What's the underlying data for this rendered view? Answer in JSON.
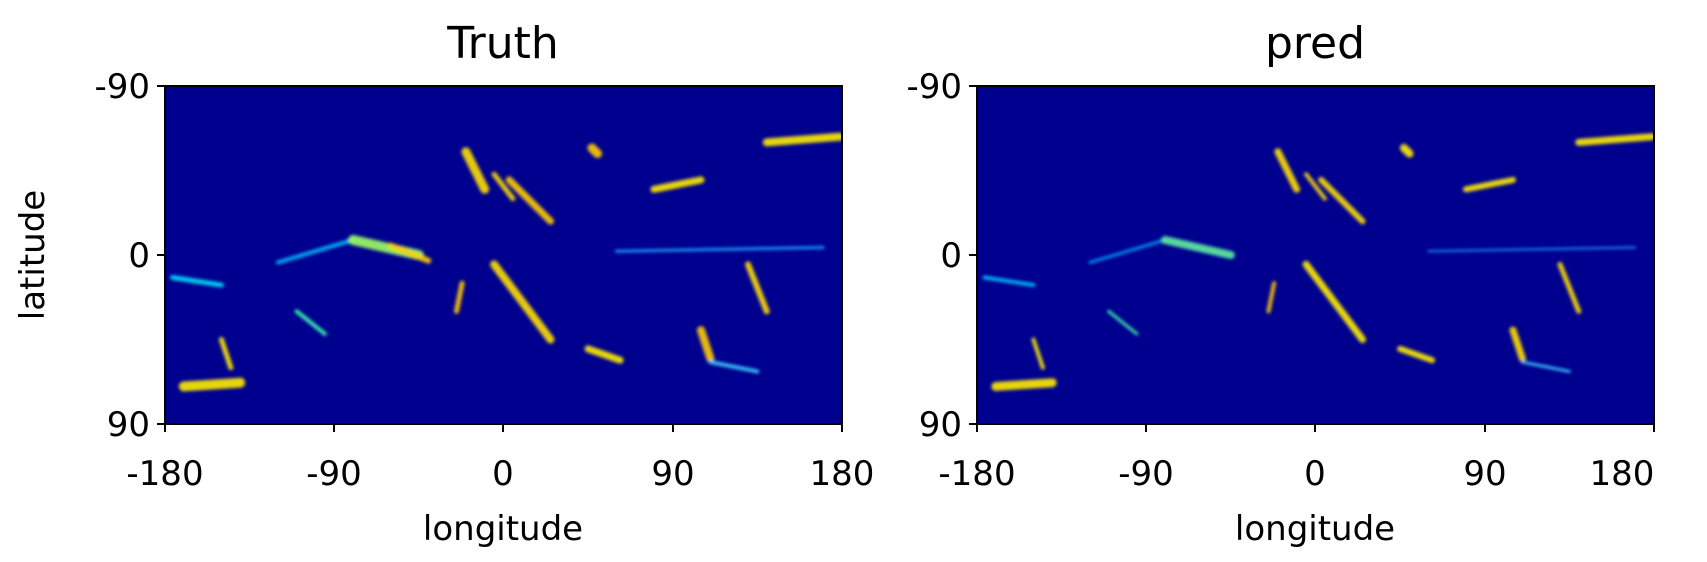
{
  "chart_data": [
    {
      "type": "heatmap",
      "title": "Truth",
      "xlabel": "longitude",
      "ylabel": "latitude",
      "xlim": [
        -180,
        180
      ],
      "ylim": [
        -90,
        90
      ],
      "y_inverted": true,
      "xticks": [
        "-180",
        "-90",
        "0",
        "90",
        "180"
      ],
      "yticks": [
        "-90",
        "0",
        "90"
      ],
      "colormap": "jet",
      "background_color": "#00008f",
      "features": [
        {
          "lon": -170,
          "lat": 70,
          "lon2": -140,
          "lat2": 68,
          "w": 10,
          "c": "#ffee00"
        },
        {
          "lon": -176,
          "lat": 12,
          "lon2": -150,
          "lat2": 16,
          "w": 5,
          "c": "#00e0ff"
        },
        {
          "lon": -120,
          "lat": 4,
          "lon2": -80,
          "lat2": -8,
          "w": 4,
          "c": "#00bfff"
        },
        {
          "lon": -80,
          "lat": -8,
          "lon2": -45,
          "lat2": 0,
          "w": 10,
          "c": "#a0ff60"
        },
        {
          "lon": -60,
          "lat": -5,
          "lon2": -40,
          "lat2": 3,
          "w": 6,
          "c": "#ffd000"
        },
        {
          "lon": -20,
          "lat": -55,
          "lon2": -10,
          "lat2": -35,
          "w": 9,
          "c": "#ffe000"
        },
        {
          "lon": -5,
          "lat": -43,
          "lon2": 5,
          "lat2": -30,
          "w": 5,
          "c": "#ffdd00"
        },
        {
          "lon": 3,
          "lat": -40,
          "lon2": 25,
          "lat2": -18,
          "w": 7,
          "c": "#ffcc00"
        },
        {
          "lon": 47,
          "lat": -57,
          "lon2": 50,
          "lat2": -54,
          "w": 9,
          "c": "#ffcc00"
        },
        {
          "lon": 80,
          "lat": -35,
          "lon2": 105,
          "lat2": -40,
          "w": 7,
          "c": "#ffee00"
        },
        {
          "lon": 140,
          "lat": -60,
          "lon2": 179,
          "lat2": -63,
          "w": 8,
          "c": "#ffee00"
        },
        {
          "lon": -5,
          "lat": 5,
          "lon2": 25,
          "lat2": 45,
          "w": 8,
          "c": "#ffe000"
        },
        {
          "lon": -22,
          "lat": 15,
          "lon2": -25,
          "lat2": 30,
          "w": 5,
          "c": "#ffcc00"
        },
        {
          "lon": 130,
          "lat": 5,
          "lon2": 140,
          "lat2": 30,
          "w": 6,
          "c": "#ffdd00"
        },
        {
          "lon": 105,
          "lat": 40,
          "lon2": 110,
          "lat2": 55,
          "w": 8,
          "c": "#ffcc00"
        },
        {
          "lon": 45,
          "lat": 50,
          "lon2": 62,
          "lat2": 56,
          "w": 7,
          "c": "#ffee00"
        },
        {
          "lon": -150,
          "lat": 45,
          "lon2": -145,
          "lat2": 60,
          "w": 5,
          "c": "#ffee00"
        },
        {
          "lon": 110,
          "lat": 57,
          "lon2": 135,
          "lat2": 62,
          "w": 4,
          "c": "#40d0ff"
        },
        {
          "lon": -110,
          "lat": 30,
          "lon2": -95,
          "lat2": 42,
          "w": 4,
          "c": "#40ffb0"
        },
        {
          "lon": 60,
          "lat": -2,
          "lon2": 170,
          "lat2": -4,
          "w": 3,
          "c": "#20a0ff"
        }
      ]
    },
    {
      "type": "heatmap",
      "title": "pred",
      "xlabel": "longitude",
      "ylabel": "",
      "xlim": [
        -180,
        180
      ],
      "ylim": [
        -90,
        90
      ],
      "y_inverted": true,
      "xticks": [
        "-180",
        "-90",
        "0",
        "90",
        "180"
      ],
      "yticks": [
        "-90",
        "0",
        "90"
      ],
      "colormap": "jet",
      "background_color": "#00008f",
      "features": [
        {
          "lon": -170,
          "lat": 70,
          "lon2": -140,
          "lat2": 68,
          "w": 9,
          "c": "#ffee00"
        },
        {
          "lon": -176,
          "lat": 12,
          "lon2": -150,
          "lat2": 16,
          "w": 4,
          "c": "#00c0ff"
        },
        {
          "lon": -120,
          "lat": 4,
          "lon2": -80,
          "lat2": -8,
          "w": 3,
          "c": "#00a0ff"
        },
        {
          "lon": -80,
          "lat": -8,
          "lon2": -45,
          "lat2": 0,
          "w": 8,
          "c": "#60f0a0"
        },
        {
          "lon": -20,
          "lat": -55,
          "lon2": -10,
          "lat2": -35,
          "w": 7,
          "c": "#ffe000"
        },
        {
          "lon": -5,
          "lat": -43,
          "lon2": 5,
          "lat2": -30,
          "w": 4,
          "c": "#ffdd00"
        },
        {
          "lon": 3,
          "lat": -40,
          "lon2": 25,
          "lat2": -18,
          "w": 6,
          "c": "#ffe000"
        },
        {
          "lon": 47,
          "lat": -57,
          "lon2": 50,
          "lat2": -54,
          "w": 8,
          "c": "#ffee00"
        },
        {
          "lon": 80,
          "lat": -35,
          "lon2": 105,
          "lat2": -40,
          "w": 6,
          "c": "#ffee00"
        },
        {
          "lon": 140,
          "lat": -60,
          "lon2": 179,
          "lat2": -63,
          "w": 7,
          "c": "#ffee00"
        },
        {
          "lon": -5,
          "lat": 5,
          "lon2": 25,
          "lat2": 45,
          "w": 7,
          "c": "#ffee00"
        },
        {
          "lon": -22,
          "lat": 15,
          "lon2": -25,
          "lat2": 30,
          "w": 4,
          "c": "#ffcc00"
        },
        {
          "lon": 130,
          "lat": 5,
          "lon2": 140,
          "lat2": 30,
          "w": 5,
          "c": "#ffdd00"
        },
        {
          "lon": 105,
          "lat": 40,
          "lon2": 110,
          "lat2": 55,
          "w": 7,
          "c": "#ffdd00"
        },
        {
          "lon": 45,
          "lat": 50,
          "lon2": 62,
          "lat2": 56,
          "w": 6,
          "c": "#ffee00"
        },
        {
          "lon": -150,
          "lat": 45,
          "lon2": -145,
          "lat2": 60,
          "w": 4,
          "c": "#ffee00"
        },
        {
          "lon": 110,
          "lat": 57,
          "lon2": 135,
          "lat2": 62,
          "w": 3,
          "c": "#40d0ff"
        },
        {
          "lon": -110,
          "lat": 30,
          "lon2": -95,
          "lat2": 42,
          "w": 3,
          "c": "#40ffb0"
        },
        {
          "lon": 60,
          "lat": -2,
          "lon2": 170,
          "lat2": -4,
          "w": 2,
          "c": "#20a0ff"
        }
      ]
    }
  ]
}
